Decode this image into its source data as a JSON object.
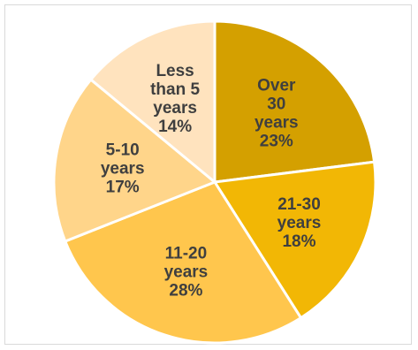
{
  "chart_data": {
    "type": "pie",
    "title": "",
    "legend": "none",
    "slices": [
      {
        "label": "Over 30 years",
        "label_lines": [
          "Over",
          "30",
          "years"
        ],
        "value": 23,
        "value_label": "23%",
        "color": "#D4A000"
      },
      {
        "label": "21-30 years",
        "label_lines": [
          "21-30",
          "years"
        ],
        "value": 18,
        "value_label": "18%",
        "color": "#F2B705"
      },
      {
        "label": "11-20 years",
        "label_lines": [
          "11-20",
          "years"
        ],
        "value": 28,
        "value_label": "28%",
        "color": "#FFC64D"
      },
      {
        "label": "5-10 years",
        "label_lines": [
          "5-10",
          "years"
        ],
        "value": 17,
        "value_label": "17%",
        "color": "#FFD58A"
      },
      {
        "label": "Less than 5 years",
        "label_lines": [
          "Less",
          "than 5",
          "years"
        ],
        "value": 14,
        "value_label": "14%",
        "color": "#FFE3BE"
      }
    ]
  }
}
